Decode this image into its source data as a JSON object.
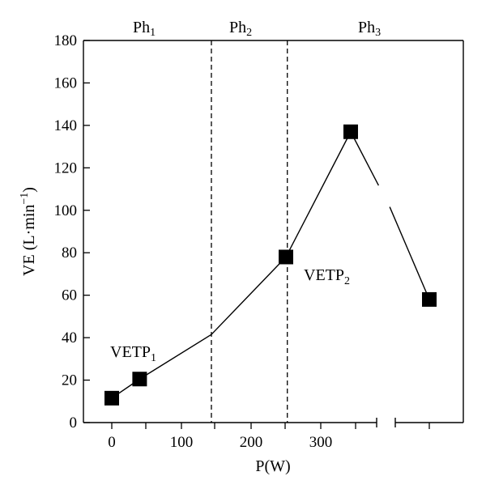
{
  "chart_data": {
    "type": "line",
    "title": "",
    "xlabel": "P(W)",
    "ylabel": {
      "main": "VE (L·min",
      "sup": "−1",
      "close": ")"
    },
    "xlim": [
      -40,
      420
    ],
    "ylim": [
      0,
      180
    ],
    "xticks": [
      0,
      100,
      200,
      300
    ],
    "yticks": [
      0,
      20,
      40,
      60,
      80,
      100,
      120,
      140,
      160,
      180
    ],
    "axis_break": true,
    "grid": false,
    "series": [
      {
        "points": [
          {
            "x": 0,
            "y": 11.5,
            "marker": true
          },
          {
            "x": 40,
            "y": 20.5,
            "marker": true
          },
          {
            "x": 143,
            "y": 41.5,
            "marker": false
          },
          {
            "x": 250,
            "y": 78,
            "marker": true
          },
          {
            "x": 343,
            "y": 137,
            "marker": true
          },
          {
            "x": 468,
            "y": 58,
            "marker": true
          }
        ],
        "line_gap": {
          "from_x": 383,
          "to_x": 399
        }
      }
    ],
    "phase_boundaries": [
      143,
      252
    ],
    "phases": [
      {
        "label": "Ph",
        "sub": "1"
      },
      {
        "label": "Ph",
        "sub": "2"
      },
      {
        "label": "Ph",
        "sub": "3"
      }
    ],
    "annotations": [
      {
        "text": "VETP",
        "sub": "1",
        "x": 40,
        "y": 20.5
      },
      {
        "text": "VETP",
        "sub": "2",
        "x": 250,
        "y": 78
      }
    ]
  }
}
